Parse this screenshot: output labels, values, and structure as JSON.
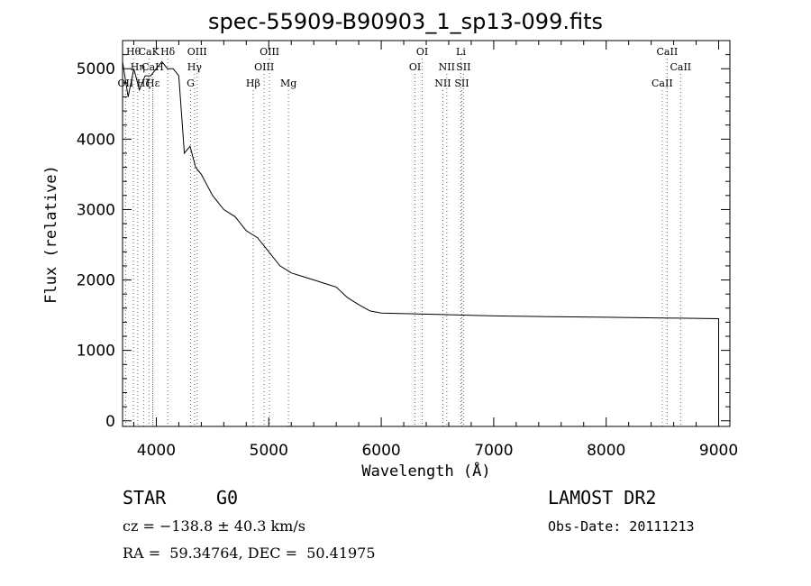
{
  "chart_data": {
    "type": "line",
    "title": "spec-55909-B90903_1_sp13-099.fits",
    "xlabel": "Wavelength (Å)",
    "ylabel": "Flux (relative)",
    "xlim": [
      3700,
      9100
    ],
    "ylim": [
      -80,
      5400
    ],
    "xticks": [
      4000,
      5000,
      6000,
      7000,
      8000,
      9000
    ],
    "yticks": [
      0,
      1000,
      2000,
      3000,
      4000,
      5000
    ],
    "grid": false,
    "series": [
      {
        "x": [
          3700,
          3750,
          3800,
          3850,
          3900,
          3950,
          4000,
          4050,
          4100,
          4150,
          4200,
          4250,
          4300,
          4350,
          4400,
          4500,
          4600,
          4700,
          4800,
          4900,
          5000,
          5100,
          5200,
          5300,
          5400,
          5500,
          5600,
          5700,
          5800,
          5900,
          6000,
          6500,
          7000,
          7500,
          8000,
          8500,
          9000
        ],
        "y": [
          5100,
          4600,
          5000,
          4700,
          4900,
          4900,
          5000,
          5100,
          5000,
          5000,
          4900,
          3800,
          3900,
          3600,
          3500,
          3200,
          3000,
          2900,
          2700,
          2600,
          2400,
          2200,
          2100,
          2050,
          2000,
          1950,
          1900,
          1750,
          1650,
          1560,
          1530,
          1510,
          1490,
          1480,
          1470,
          1460,
          1450
        ]
      }
    ],
    "lines": [
      {
        "label": "OII",
        "x": 3727,
        "row": 3
      },
      {
        "label": "Hθ",
        "x": 3797,
        "row": 1
      },
      {
        "label": "Hη",
        "x": 3835,
        "row": 2
      },
      {
        "label": "Hζ",
        "x": 3889,
        "row": 3
      },
      {
        "label": "CaK",
        "x": 3934,
        "row": 1
      },
      {
        "label": "CaH",
        "x": 3968,
        "row": 2
      },
      {
        "label": "Hε",
        "x": 3970,
        "row": 3
      },
      {
        "label": "Hδ",
        "x": 4102,
        "row": 1
      },
      {
        "label": "OIII",
        "x": 4363,
        "row": 1
      },
      {
        "label": "Hγ",
        "x": 4340,
        "row": 2
      },
      {
        "label": "G",
        "x": 4305,
        "row": 3
      },
      {
        "label": "Hβ",
        "x": 4861,
        "row": 3
      },
      {
        "label": "OIII",
        "x": 4959,
        "row": 2
      },
      {
        "label": "OIII",
        "x": 5007,
        "row": 1
      },
      {
        "label": "Mg",
        "x": 5175,
        "row": 3
      },
      {
        "label": "OI",
        "x": 6300,
        "row": 2
      },
      {
        "label": "OI",
        "x": 6364,
        "row": 1
      },
      {
        "label": "NII",
        "x": 6548,
        "row": 3
      },
      {
        "label": "NII",
        "x": 6583,
        "row": 2
      },
      {
        "label": "Li",
        "x": 6708,
        "row": 1
      },
      {
        "label": "SII",
        "x": 6716,
        "row": 3
      },
      {
        "label": "SII",
        "x": 6731,
        "row": 2
      },
      {
        "label": "CaII",
        "x": 8498,
        "row": 3
      },
      {
        "label": "CaII",
        "x": 8542,
        "row": 1
      },
      {
        "label": "CaII",
        "x": 8662,
        "row": 2
      }
    ]
  },
  "info": {
    "class_label": "STAR",
    "subclass": "G0",
    "survey": "LAMOST DR2",
    "cz": "cz = −138.8 ± 40.3 km/s",
    "obsdate": "Obs-Date: 20111213",
    "radec": "RA =  59.34764, DEC =  50.41975"
  }
}
